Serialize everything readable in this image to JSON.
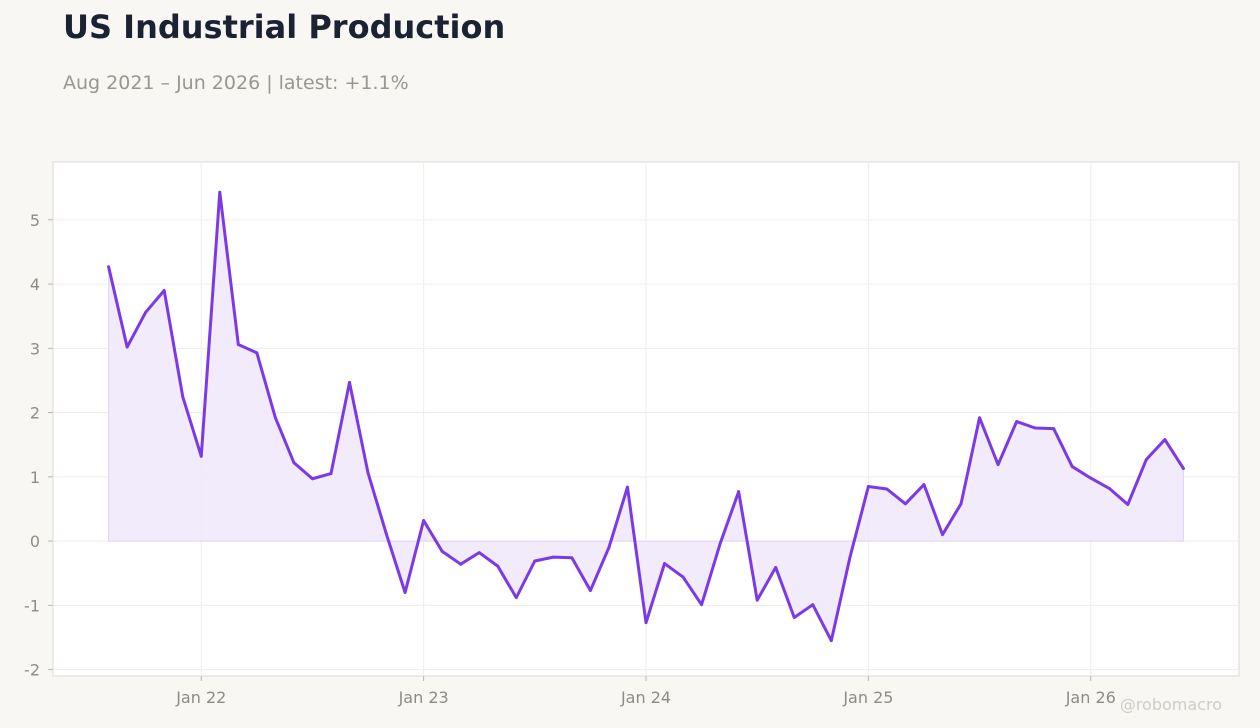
{
  "header": {
    "title": "US Industrial Production",
    "subtitle": "Aug 2021 – Jun 2026 | latest: +1.1%"
  },
  "watermark": "@robomacro",
  "colors": {
    "line": "#7b3ae6",
    "fill": "#efe8fb",
    "background": "#f8f7f4",
    "plot_background": "#ffffff",
    "grid": "#efedea",
    "frame": "#dcdad4"
  },
  "chart_data": {
    "type": "area",
    "title": "US Industrial Production",
    "subtitle": "Aug 2021 – Jun 2026 | latest: +1.1%",
    "xlabel": "",
    "ylabel": "",
    "grid": true,
    "legend": "none",
    "ylim": [
      -2.1,
      5.9
    ],
    "xlim": [
      "2021-05",
      "2026-09"
    ],
    "y_ticks": [
      -2,
      -1,
      0,
      1,
      2,
      3,
      4,
      5
    ],
    "x_ticks": [
      {
        "date": "2022-01",
        "label": "Jan 22"
      },
      {
        "date": "2023-01",
        "label": "Jan 23"
      },
      {
        "date": "2024-01",
        "label": "Jan 24"
      },
      {
        "date": "2025-01",
        "label": "Jan 25"
      },
      {
        "date": "2026-01",
        "label": "Jan 26"
      }
    ],
    "series": [
      {
        "x": [
          "2021-08",
          "2021-09",
          "2021-10",
          "2021-11",
          "2021-12",
          "2022-01",
          "2022-02",
          "2022-03",
          "2022-04",
          "2022-05",
          "2022-06",
          "2022-07",
          "2022-08",
          "2022-09",
          "2022-10",
          "2022-11",
          "2022-12",
          "2023-01",
          "2023-02",
          "2023-03",
          "2023-04",
          "2023-05",
          "2023-06",
          "2023-07",
          "2023-08",
          "2023-09",
          "2023-10",
          "2023-11",
          "2023-12",
          "2024-01",
          "2024-02",
          "2024-03",
          "2024-04",
          "2024-05",
          "2024-06",
          "2024-07",
          "2024-08",
          "2024-09",
          "2024-10",
          "2024-11",
          "2024-12",
          "2025-01",
          "2025-02",
          "2025-03",
          "2025-04",
          "2025-05",
          "2025-06",
          "2025-07",
          "2025-08",
          "2025-09",
          "2025-10",
          "2025-11",
          "2025-12",
          "2026-01",
          "2026-02",
          "2026-03",
          "2026-04",
          "2026-05",
          "2026-06"
        ],
        "values": [
          4.27,
          3.02,
          3.56,
          3.9,
          2.25,
          1.32,
          5.43,
          3.06,
          2.93,
          1.92,
          1.22,
          0.97,
          1.05,
          2.47,
          1.06,
          0.1,
          -0.8,
          0.32,
          -0.16,
          -0.36,
          -0.18,
          -0.39,
          -0.88,
          -0.31,
          -0.25,
          -0.26,
          -0.77,
          -0.1,
          0.84,
          -1.27,
          -0.35,
          -0.56,
          -0.99,
          -0.04,
          0.77,
          -0.92,
          -0.41,
          -1.19,
          -0.99,
          -1.55,
          -0.26,
          0.85,
          0.81,
          0.58,
          0.88,
          0.1,
          0.58,
          1.92,
          1.19,
          1.86,
          1.76,
          1.75,
          1.16,
          0.98,
          0.82,
          0.57,
          1.27,
          1.58,
          1.13
        ]
      }
    ]
  }
}
